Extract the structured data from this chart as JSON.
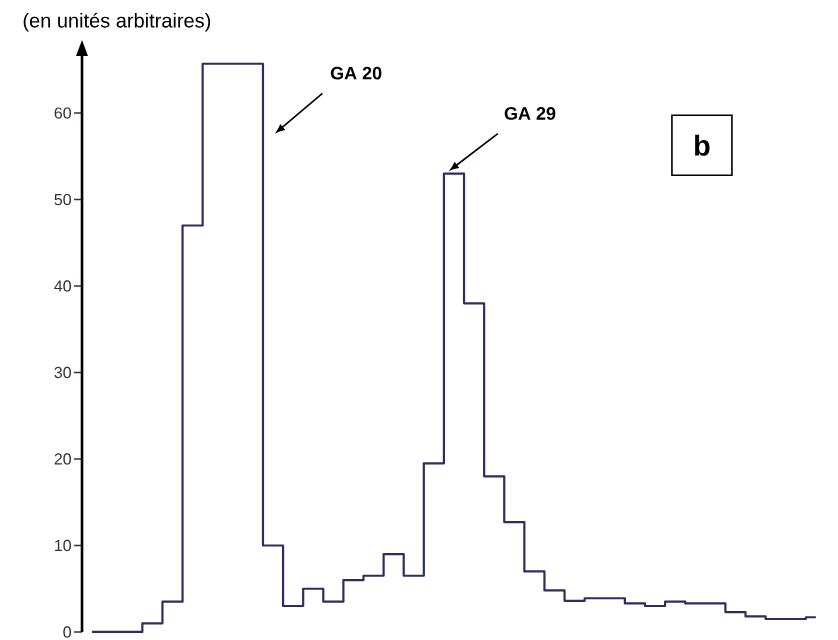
{
  "chart_data": {
    "type": "step",
    "ylabel": "(en unités arbitraires)",
    "categories": [
      null,
      null,
      null,
      null,
      null,
      null,
      null,
      null,
      null,
      null,
      null,
      null,
      null,
      null,
      null,
      null,
      null,
      null,
      null,
      null,
      null,
      null,
      null,
      null,
      null,
      null,
      null,
      null,
      null,
      null,
      null,
      null,
      null,
      null,
      null,
      null,
      null
    ],
    "values": [
      0,
      0,
      0,
      1,
      3.5,
      47,
      65.7,
      65.7,
      65.7,
      10,
      3,
      5,
      3.5,
      6,
      6.5,
      9,
      6.5,
      19.5,
      53,
      38,
      18,
      12.7,
      7,
      4.8,
      3.6,
      3.9,
      3.9,
      3.3,
      3,
      3.5,
      3.3,
      3.3,
      2.3,
      1.8,
      1.5,
      1.5,
      1.7
    ],
    "color": "#2b2f5e",
    "ylim": [
      0,
      66.6
    ],
    "yticks": [
      0,
      10,
      20,
      30,
      40,
      50,
      60
    ],
    "tick_labels": "y",
    "annotations": [
      "GA 20",
      "GA 29",
      "b"
    ]
  }
}
